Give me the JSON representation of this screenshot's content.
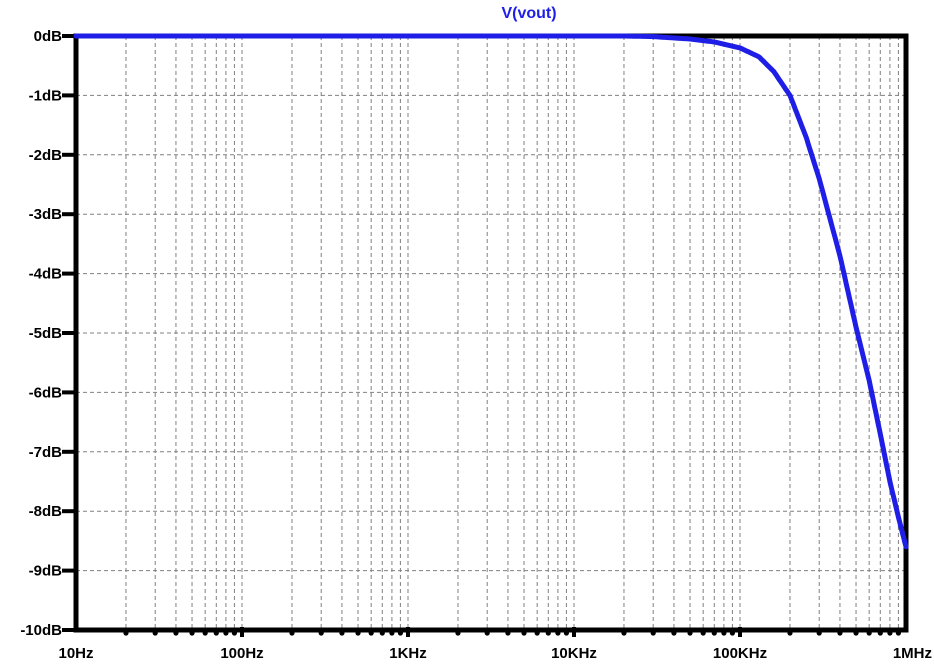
{
  "chart_data": {
    "type": "line",
    "title": "V(vout)",
    "x_scale": "log",
    "xlim": [
      10,
      1000000
    ],
    "ylim": [
      -10,
      0
    ],
    "grid": true,
    "x_tick_values": [
      10,
      100,
      1000,
      10000,
      100000,
      1000000
    ],
    "x_tick_labels": [
      "10Hz",
      "100Hz",
      "1KHz",
      "10KHz",
      "100KHz",
      "1MHz"
    ],
    "y_tick_values": [
      0,
      -1,
      -2,
      -3,
      -4,
      -5,
      -6,
      -7,
      -8,
      -9,
      -10
    ],
    "y_tick_labels": [
      "0dB",
      "-1dB",
      "-2dB",
      "-3dB",
      "-4dB",
      "-5dB",
      "-6dB",
      "-7dB",
      "-8dB",
      "-9dB",
      "-10dB"
    ],
    "series": [
      {
        "name": "V(vout)",
        "color": "#1e1ee6",
        "x": [
          10,
          100,
          1000,
          10000,
          20000,
          30000,
          50000,
          70000,
          100000,
          130000,
          160000,
          200000,
          250000,
          300000,
          400000,
          500000,
          600000,
          700000,
          800000,
          900000,
          1000000
        ],
        "y": [
          0,
          0,
          0,
          0,
          0,
          -0.01,
          -0.05,
          -0.1,
          -0.2,
          -0.35,
          -0.6,
          -1.0,
          -1.7,
          -2.4,
          -3.7,
          -4.9,
          -5.8,
          -6.7,
          -7.5,
          -8.1,
          -8.6
        ]
      }
    ],
    "colors": {
      "title": "#1e1ee6",
      "grid": "#808080",
      "axes": "#000000"
    }
  }
}
